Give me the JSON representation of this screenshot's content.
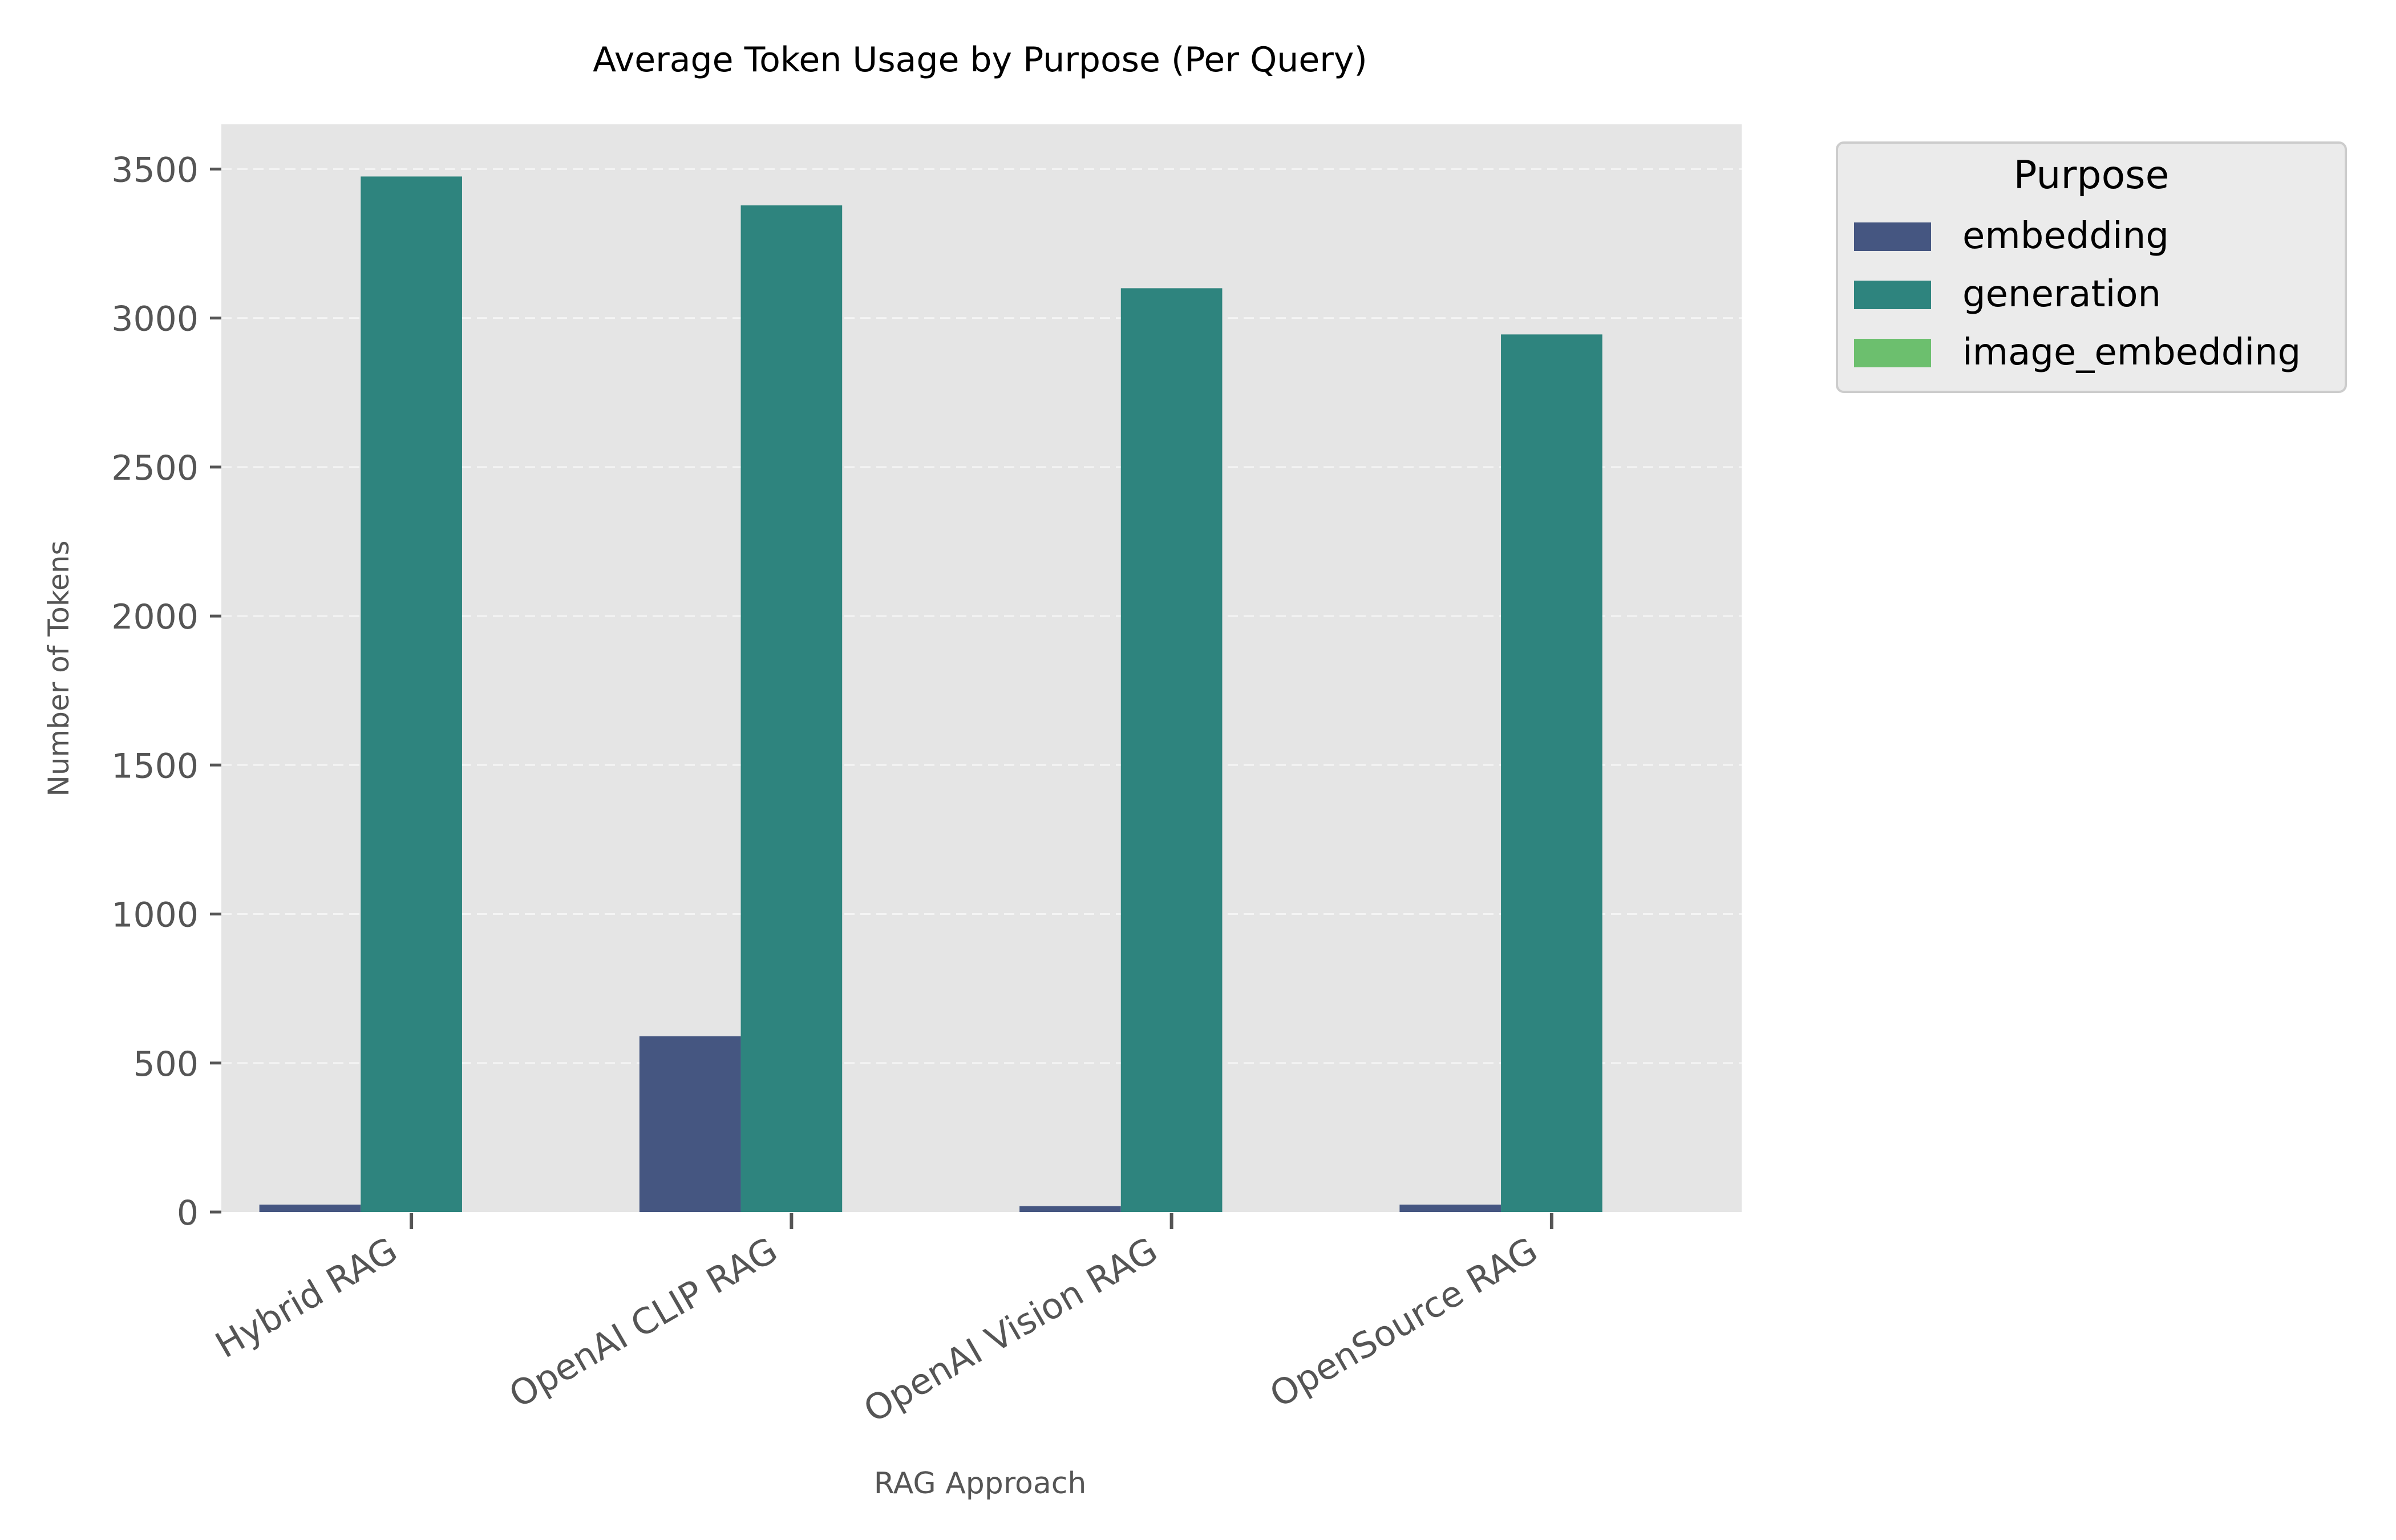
{
  "chart_data": {
    "type": "bar",
    "title": "Average Token Usage by Purpose (Per Query)",
    "xlabel": "RAG Approach",
    "ylabel": "Number of Tokens",
    "categories": [
      "Hybrid RAG",
      "OpenAI CLIP RAG",
      "OpenAI Vision RAG",
      "OpenSource RAG"
    ],
    "series": [
      {
        "name": "embedding",
        "color": "#455681",
        "values": [
          25,
          590,
          20,
          25
        ]
      },
      {
        "name": "generation",
        "color": "#2e847e",
        "values": [
          3475,
          3378,
          3100,
          2945
        ]
      },
      {
        "name": "image_embedding",
        "color": "#6cbf6e",
        "values": [
          0,
          0,
          0,
          0
        ]
      }
    ],
    "ylim": [
      0,
      3650
    ],
    "yticks": [
      0,
      500,
      1000,
      1500,
      2000,
      2500,
      3000,
      3500
    ],
    "grid": true,
    "legend": {
      "title": "Purpose",
      "placement": "outside top-right"
    },
    "background": "#e5e5e5"
  }
}
